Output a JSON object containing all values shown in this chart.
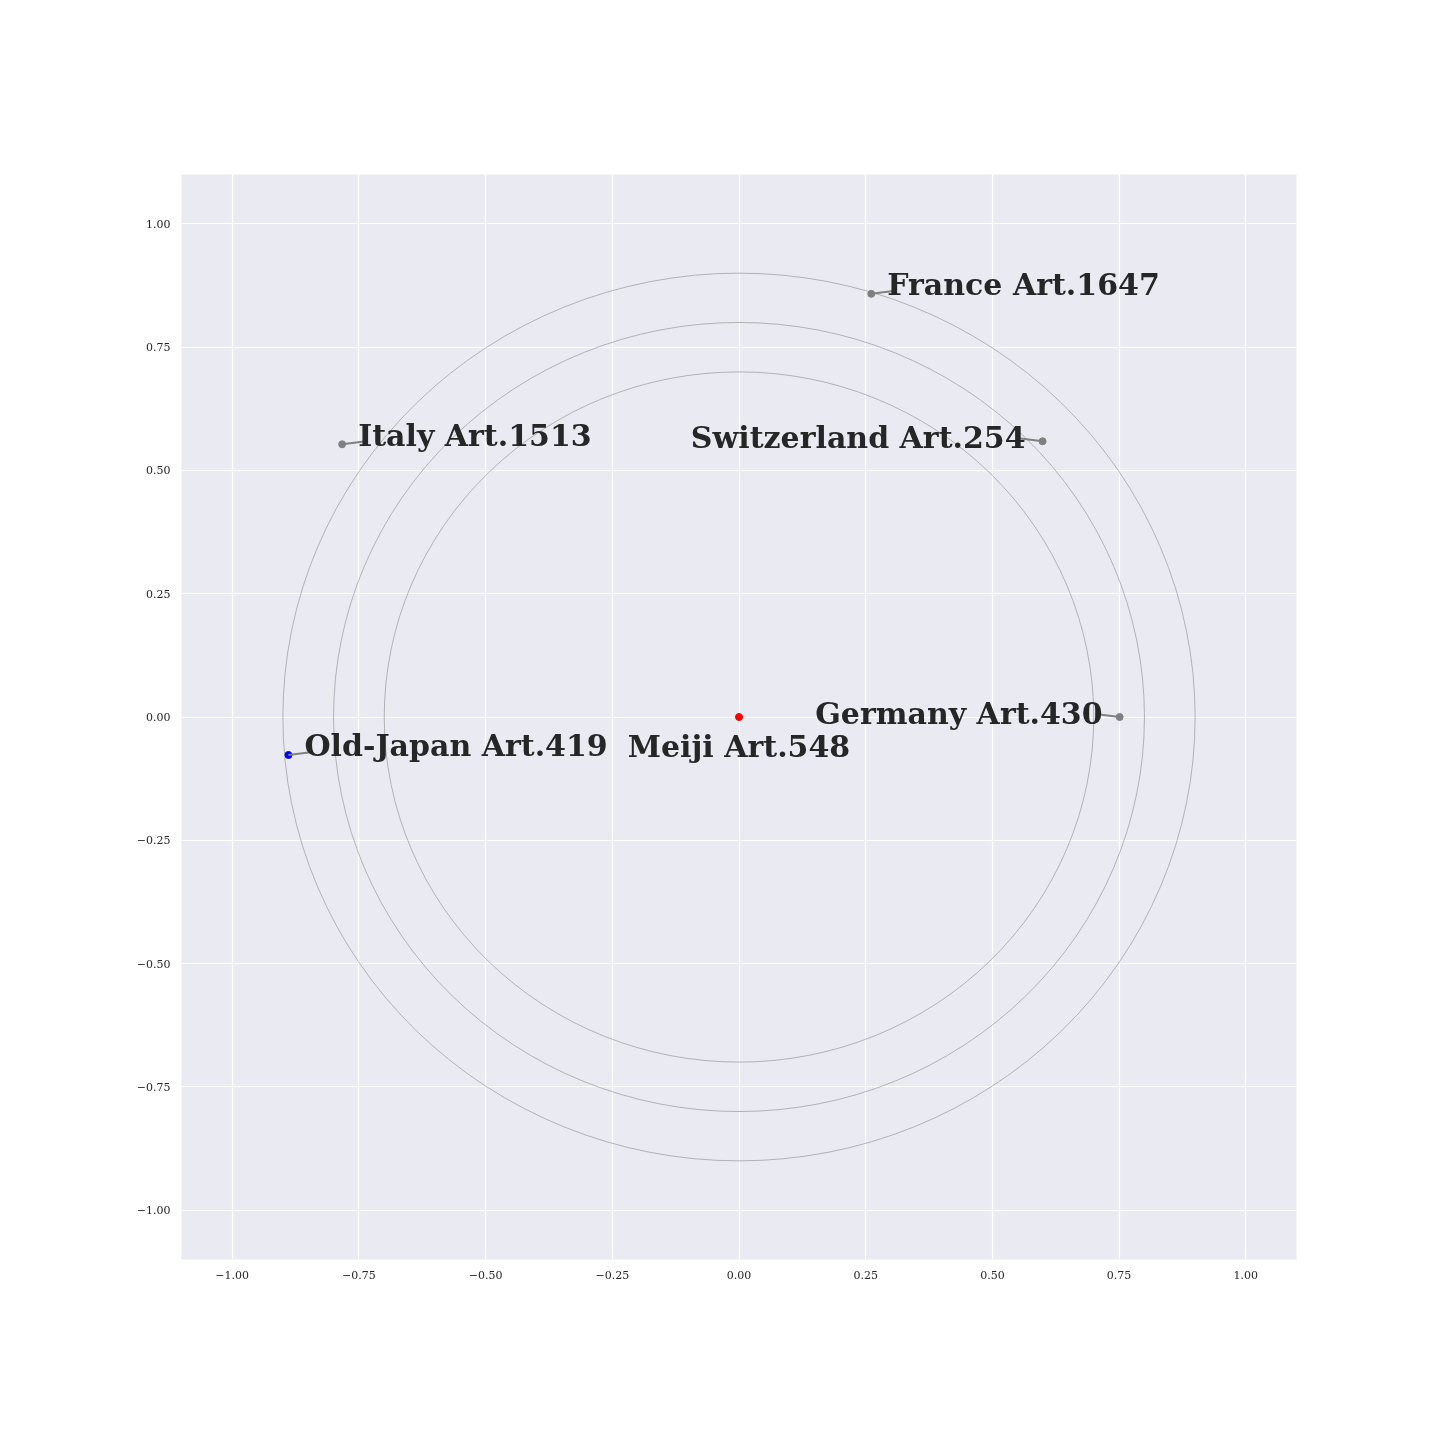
{
  "chart_data": {
    "type": "scatter",
    "xlim": [
      -1.1,
      1.1
    ],
    "ylim": [
      -1.1,
      1.1
    ],
    "xticks": [
      {
        "value": -1,
        "label": "−1.00"
      },
      {
        "value": -0.75,
        "label": "−0.75"
      },
      {
        "value": -0.5,
        "label": "−0.50"
      },
      {
        "value": -0.25,
        "label": "−0.25"
      },
      {
        "value": 0,
        "label": "0.00"
      },
      {
        "value": 0.25,
        "label": "0.25"
      },
      {
        "value": 0.5,
        "label": "0.50"
      },
      {
        "value": 0.75,
        "label": "0.75"
      },
      {
        "value": 1,
        "label": "1.00"
      }
    ],
    "yticks": [
      {
        "value": -1,
        "label": "−1.00"
      },
      {
        "value": -0.75,
        "label": "−0.75"
      },
      {
        "value": -0.5,
        "label": "−0.50"
      },
      {
        "value": -0.25,
        "label": "−0.25"
      },
      {
        "value": 0,
        "label": "0.00"
      },
      {
        "value": 0.25,
        "label": "0.25"
      },
      {
        "value": 0.5,
        "label": "0.50"
      },
      {
        "value": 0.75,
        "label": "0.75"
      },
      {
        "value": 1,
        "label": "1.00"
      }
    ],
    "grid": true,
    "marker": "circle",
    "series": [
      {
        "x": [
          0.261,
          -0.783,
          0.599,
          0.751,
          -0.889,
          0
        ],
        "values": [
          0.858,
          0.553,
          0.559,
          0,
          -0.077,
          0
        ],
        "colors": [
          "#808080",
          "#808080",
          "#808080",
          "#808080",
          "#0000ff",
          "#ff0000"
        ]
      }
    ],
    "annotations": [
      {
        "text": "France Art.1647",
        "x": 0.261,
        "y": 0.858
      },
      {
        "text": "Italy Art.1513",
        "x": -0.783,
        "y": 0.553
      },
      {
        "text": "Switzerland Art.254",
        "x": 0.599,
        "y": 0.559
      },
      {
        "text": "Germany Art.430",
        "x": 0.751,
        "y": 0
      },
      {
        "text": "Old-Japan Art.419",
        "x": -0.889,
        "y": -0.077
      },
      {
        "text": "Meiji Art.548",
        "x": 0,
        "y": 0
      }
    ]
  }
}
